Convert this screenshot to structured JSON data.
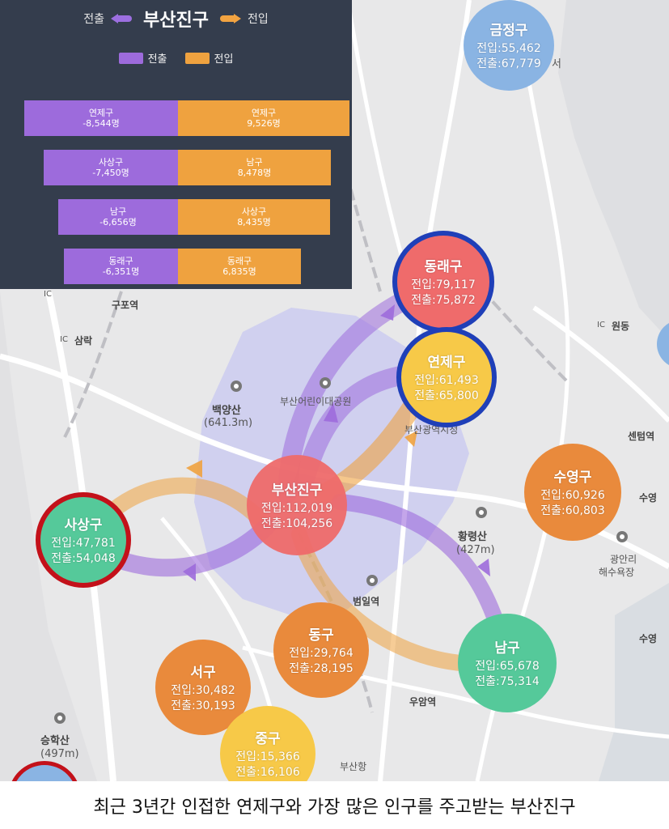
{
  "panel": {
    "title": "부산진구",
    "out_label": "전출",
    "in_label": "전입",
    "legend": {
      "out": "전출",
      "in": "전입"
    },
    "rows": [
      {
        "out_name": "연제구",
        "out_value": "-8,544명",
        "in_name": "연제구",
        "in_value": "9,526명"
      },
      {
        "out_name": "사상구",
        "out_value": "-7,450명",
        "in_name": "남구",
        "in_value": "8,478명"
      },
      {
        "out_name": "남구",
        "out_value": "-6,656명",
        "in_name": "사상구",
        "in_value": "8,435명"
      },
      {
        "out_name": "동래구",
        "out_value": "-6,351명",
        "in_name": "동래구",
        "in_value": "6,835명"
      }
    ]
  },
  "districts": [
    {
      "name": "금정구",
      "in": "전입:55,462",
      "out": "전출:67,779"
    },
    {
      "name": "동래구",
      "in": "전입:79,117",
      "out": "전출:75,872"
    },
    {
      "name": "연제구",
      "in": "전입:61,493",
      "out": "전출:65,800"
    },
    {
      "name": "부산진구",
      "in": "전입:112,019",
      "out": "전출:104,256"
    },
    {
      "name": "사상구",
      "in": "전입:47,781",
      "out": "전출:54,048"
    },
    {
      "name": "수영구",
      "in": "전입:60,926",
      "out": "전출:60,803"
    },
    {
      "name": "동구",
      "in": "전입:29,764",
      "out": "전출:28,195"
    },
    {
      "name": "남구",
      "in": "전입:65,678",
      "out": "전출:75,314"
    },
    {
      "name": "서구",
      "in": "전입:30,482",
      "out": "전출:30,193"
    },
    {
      "name": "중구",
      "in": "전입:15,366",
      "out": "전출:16,106"
    }
  ],
  "map_labels": {
    "gupo": "구포역",
    "samrak": "삼락",
    "baekyang": "백양산",
    "baekyang_h": "(641.3m)",
    "wondong": "원동",
    "centum": "센텀역",
    "suyeong": "수영",
    "hwangryeong": "황령산",
    "hwangryeong_h": "(427m)",
    "gwangan1": "광안리",
    "gwangan2": "해수욕장",
    "beomil": "범일역",
    "uam": "우암역",
    "seunghak": "승학산",
    "seunghak_h": "(497m)",
    "busanhang": "부산항",
    "citizen_park": "부산어린이대공원",
    "cityhall": "부산광역시청",
    "seo": "서",
    "ic1": "IC",
    "ic2": "IC",
    "ic3": "IC"
  },
  "colors": {
    "out": "#9d6bdc",
    "in": "#efa23f",
    "panel_bg": "#343d4d",
    "blue_circle": "#8ab4e3",
    "red_circle": "#ef6b6b",
    "yellow_circle": "#f7c948",
    "orange_circle": "#e98a3c",
    "green_circle": "#55c99a",
    "ring_blue": "#1f3fb8",
    "ring_red": "#c3111a"
  },
  "caption": "최근 3년간 인접한 연제구와 가장 많은 인구를 주고받는 부산진구"
}
